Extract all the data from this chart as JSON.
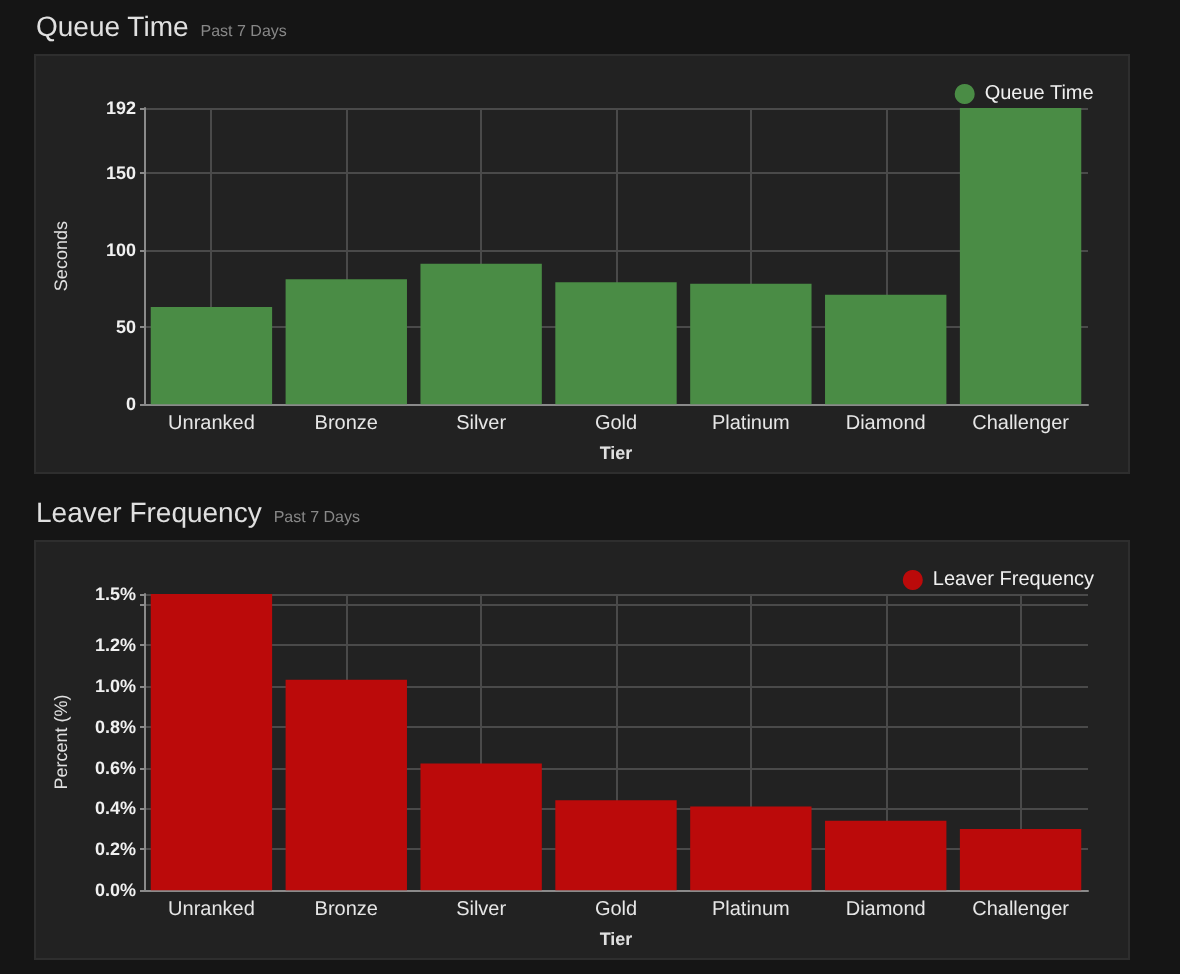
{
  "chart_data": [
    {
      "type": "bar",
      "title": "Queue Time",
      "subtitle": "Past 7 Days",
      "xlabel": "Tier",
      "ylabel": "Seconds",
      "categories": [
        "Unranked",
        "Bronze",
        "Silver",
        "Gold",
        "Platinum",
        "Diamond",
        "Challenger"
      ],
      "series": [
        {
          "name": "Queue Time",
          "color": "#4a8c45",
          "values": [
            63,
            81,
            91,
            79,
            78,
            71,
            192
          ]
        }
      ],
      "ylim": [
        0,
        192
      ],
      "yticks": [
        0,
        50,
        100,
        150,
        192
      ],
      "grid": true,
      "legend": "top right"
    },
    {
      "type": "bar",
      "title": "Leaver Frequency",
      "subtitle": "Past 7 Days",
      "xlabel": "Tier",
      "ylabel": "Percent (%)",
      "categories": [
        "Unranked",
        "Bronze",
        "Silver",
        "Gold",
        "Platinum",
        "Diamond",
        "Challenger"
      ],
      "series": [
        {
          "name": "Leaver Frequency",
          "color": "#bb0a0a",
          "values": [
            1.45,
            1.03,
            0.62,
            0.44,
            0.41,
            0.34,
            0.3
          ]
        }
      ],
      "ylim": [
        0,
        1.45
      ],
      "yticks": [
        {
          "value": 0,
          "label": "0.0%"
        },
        {
          "value": 0.2,
          "label": "0.2%"
        },
        {
          "value": 0.4,
          "label": "0.4%"
        },
        {
          "value": 0.6,
          "label": "0.6%"
        },
        {
          "value": 0.8,
          "label": "0.8%"
        },
        {
          "value": 1.0,
          "label": "1.0%"
        },
        {
          "value": 1.2,
          "label": "1.2%"
        },
        {
          "value": 1.4,
          "label": null
        },
        {
          "value": 1.45,
          "label": "1.5%"
        }
      ],
      "grid": true,
      "legend": "top right"
    }
  ]
}
